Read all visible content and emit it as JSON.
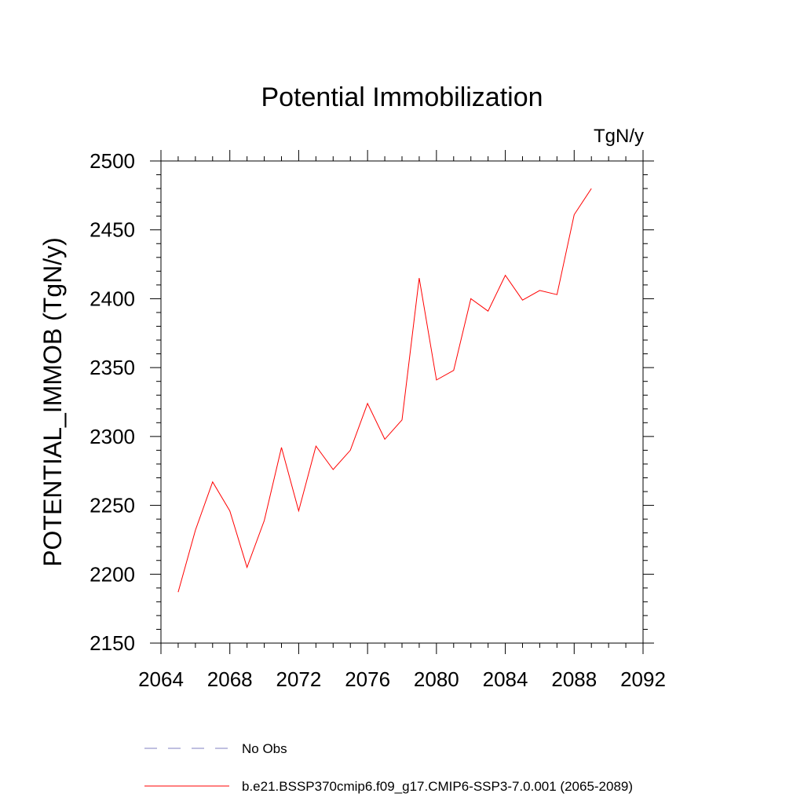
{
  "chart_data": {
    "type": "line",
    "title": "Potential Immobilization",
    "units_label": "TgN/y",
    "ylabel": "POTENTIAL_IMMOB  (TgN/y)",
    "xlabel": "",
    "xlim": [
      2064,
      2092
    ],
    "ylim": [
      2150,
      2500
    ],
    "x_ticks": [
      2064,
      2068,
      2072,
      2076,
      2080,
      2084,
      2088,
      2092
    ],
    "y_ticks": [
      2150,
      2200,
      2250,
      2300,
      2350,
      2400,
      2450,
      2500
    ],
    "x_tick_labels": [
      "2064",
      "2068",
      "2072",
      "2076",
      "2080",
      "2084",
      "2088",
      "2092"
    ],
    "y_tick_labels": [
      "2150",
      "2200",
      "2250",
      "2300",
      "2350",
      "2400",
      "2450",
      "2500"
    ],
    "series": [
      {
        "name": "b.e21.BSSP370cmip6.f09_g17.CMIP6-SSP3-7.0.001 (2065-2089)",
        "color": "#ff0000",
        "x": [
          2065,
          2066,
          2067,
          2068,
          2069,
          2070,
          2071,
          2072,
          2073,
          2074,
          2075,
          2076,
          2077,
          2078,
          2079,
          2080,
          2081,
          2082,
          2083,
          2084,
          2085,
          2086,
          2087,
          2088,
          2089
        ],
        "y": [
          2187,
          2232,
          2267,
          2246,
          2205,
          2239,
          2292,
          2246,
          2293,
          2276,
          2290,
          2324,
          2298,
          2312,
          2415,
          2341,
          2348,
          2400,
          2391,
          2417,
          2399,
          2406,
          2403,
          2461,
          2480
        ]
      }
    ],
    "legend": [
      {
        "label": "No Obs",
        "style": "dashed",
        "color": "#8080c0"
      },
      {
        "label": "b.e21.BSSP370cmip6.f09_g17.CMIP6-SSP3-7.0.001 (2065-2089)",
        "style": "solid",
        "color": "#ff0000"
      }
    ],
    "legend_placement": "bottom",
    "grid": false
  }
}
